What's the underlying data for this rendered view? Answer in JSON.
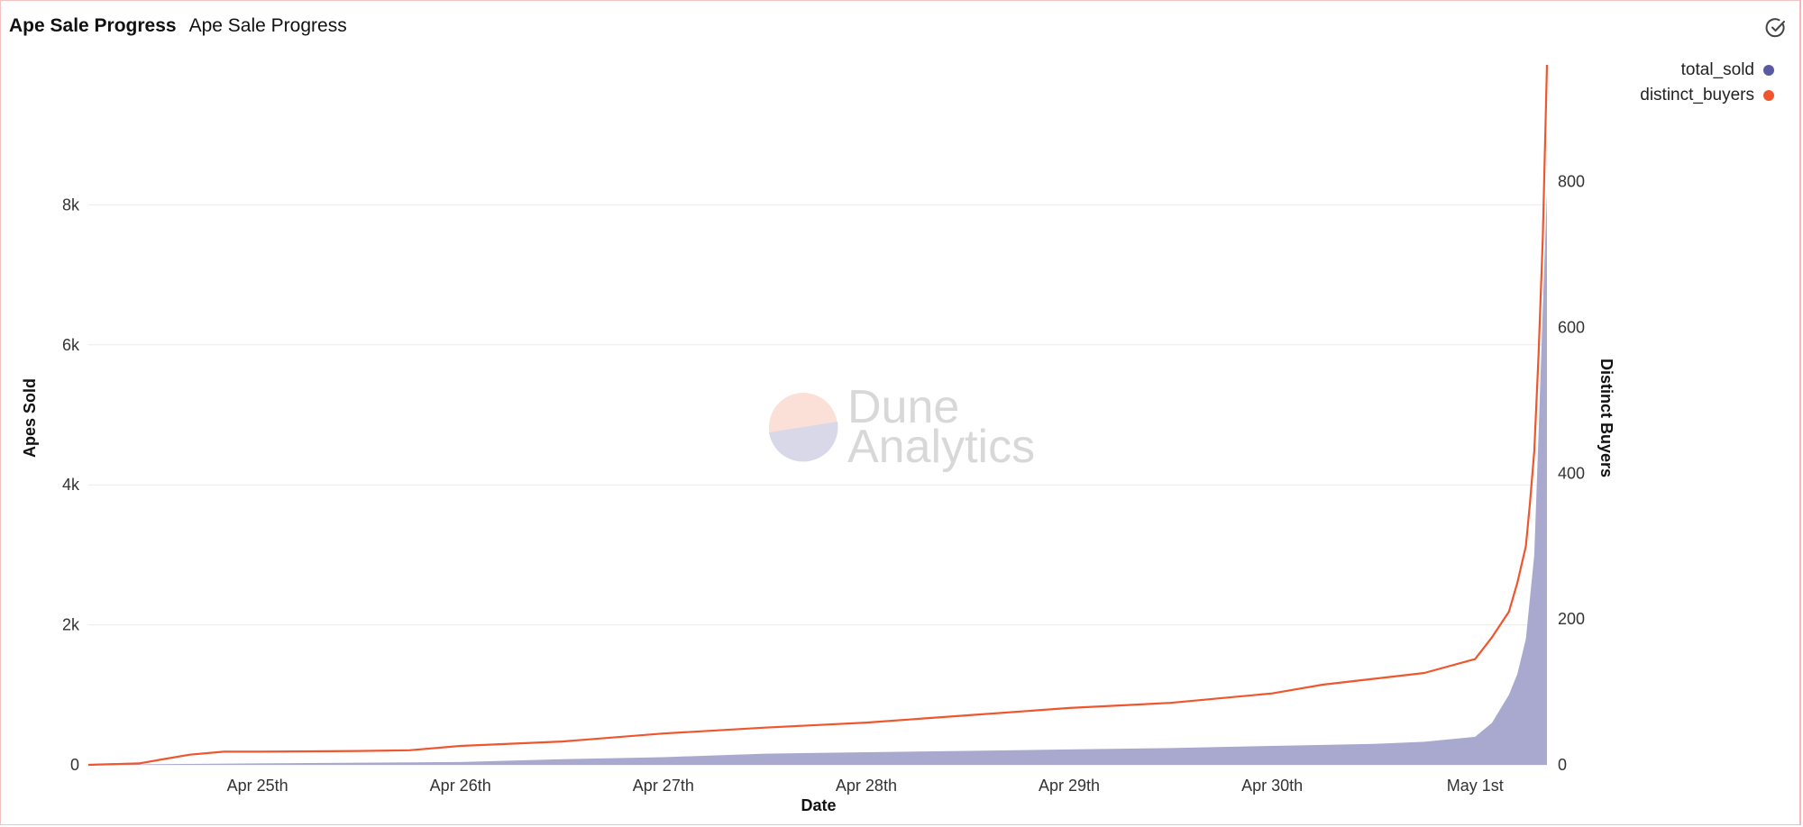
{
  "header": {
    "title": "Ape Sale Progress",
    "subtitle": "Ape Sale Progress"
  },
  "icons": {
    "status": "check-circle-icon"
  },
  "watermark": {
    "line1": "Dune",
    "line2": "Analytics"
  },
  "colors": {
    "total_sold": "#a9a9d0",
    "total_sold_dot": "#5a5aa3",
    "distinct_buyers": "#f0562e",
    "grid": "#ececec"
  },
  "chart_data": {
    "type": "area",
    "title": "Ape Sale Progress",
    "xlabel": "Date",
    "ylabel_left": "Apes Sold",
    "ylabel_right": "Distinct Buyers",
    "x_ticks": [
      "Apr 25th",
      "Apr 26th",
      "Apr 27th",
      "Apr 28th",
      "Apr 29th",
      "Apr 30th",
      "May 1st"
    ],
    "x_range": [
      "2021-04-24T04:00",
      "2021-05-01T08:30"
    ],
    "y_left_ticks": [
      "0",
      "2k",
      "4k",
      "6k",
      "8k"
    ],
    "y_left_range": [
      0,
      10000
    ],
    "y_right_ticks": [
      "0",
      "200",
      "400",
      "600",
      "800"
    ],
    "y_right_range": [
      0,
      960
    ],
    "grid": true,
    "legend_position": "top-right",
    "series": [
      {
        "name": "total_sold",
        "axis": "left",
        "type": "area",
        "points": [
          [
            "2021-04-24T04:00",
            0
          ],
          [
            "2021-04-24T12:00",
            10
          ],
          [
            "2021-04-25T00:00",
            20
          ],
          [
            "2021-04-26T00:00",
            40
          ],
          [
            "2021-04-26T12:00",
            80
          ],
          [
            "2021-04-27T00:00",
            110
          ],
          [
            "2021-04-27T12:00",
            160
          ],
          [
            "2021-04-28T00:00",
            180
          ],
          [
            "2021-04-28T12:00",
            200
          ],
          [
            "2021-04-29T00:00",
            220
          ],
          [
            "2021-04-29T12:00",
            240
          ],
          [
            "2021-04-30T00:00",
            270
          ],
          [
            "2021-04-30T12:00",
            300
          ],
          [
            "2021-04-30T18:00",
            330
          ],
          [
            "2021-05-01T00:00",
            400
          ],
          [
            "2021-05-01T02:00",
            600
          ],
          [
            "2021-05-01T03:00",
            800
          ],
          [
            "2021-05-01T04:00",
            1000
          ],
          [
            "2021-05-01T05:00",
            1300
          ],
          [
            "2021-05-01T06:00",
            1800
          ],
          [
            "2021-05-01T07:00",
            3000
          ],
          [
            "2021-05-01T07:30",
            4700
          ],
          [
            "2021-05-01T08:00",
            6500
          ],
          [
            "2021-05-01T08:30",
            8200
          ]
        ]
      },
      {
        "name": "distinct_buyers",
        "axis": "right",
        "type": "line",
        "points": [
          [
            "2021-04-24T04:00",
            0
          ],
          [
            "2021-04-24T10:00",
            2
          ],
          [
            "2021-04-24T13:00",
            8
          ],
          [
            "2021-04-24T16:00",
            14
          ],
          [
            "2021-04-24T20:00",
            18
          ],
          [
            "2021-04-25T00:00",
            18
          ],
          [
            "2021-04-25T12:00",
            19
          ],
          [
            "2021-04-25T18:00",
            20
          ],
          [
            "2021-04-26T00:00",
            26
          ],
          [
            "2021-04-26T12:00",
            32
          ],
          [
            "2021-04-27T00:00",
            43
          ],
          [
            "2021-04-27T12:00",
            51
          ],
          [
            "2021-04-28T00:00",
            58
          ],
          [
            "2021-04-28T12:00",
            68
          ],
          [
            "2021-04-29T00:00",
            78
          ],
          [
            "2021-04-29T12:00",
            85
          ],
          [
            "2021-04-30T00:00",
            98
          ],
          [
            "2021-04-30T06:00",
            110
          ],
          [
            "2021-04-30T12:00",
            118
          ],
          [
            "2021-04-30T18:00",
            126
          ],
          [
            "2021-05-01T00:00",
            145
          ],
          [
            "2021-05-01T02:00",
            175
          ],
          [
            "2021-05-01T04:00",
            210
          ],
          [
            "2021-05-01T05:00",
            250
          ],
          [
            "2021-05-01T06:00",
            300
          ],
          [
            "2021-05-01T06:30",
            360
          ],
          [
            "2021-05-01T07:00",
            430
          ],
          [
            "2021-05-01T07:30",
            560
          ],
          [
            "2021-05-01T08:00",
            720
          ],
          [
            "2021-05-01T08:30",
            960
          ]
        ]
      }
    ]
  }
}
